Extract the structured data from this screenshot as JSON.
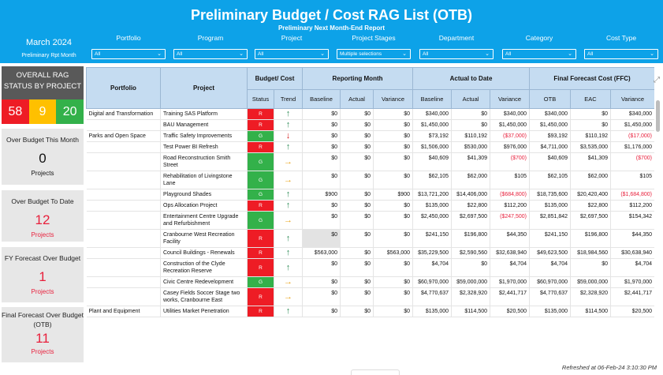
{
  "header": {
    "title": "Preliminary Budget / Cost RAG List (OTB)",
    "subtitle": "Preliminary Next Month-End Report",
    "period": "March 2024",
    "period_label": "Preliminary Rpt Month"
  },
  "filters": [
    {
      "label": "Portfolio",
      "value": "All"
    },
    {
      "label": "Program",
      "value": "All"
    },
    {
      "label": "Project",
      "value": "All"
    },
    {
      "label": "Project Stages",
      "value": "Multiple selections"
    },
    {
      "label": "Department",
      "value": "All"
    },
    {
      "label": "Category",
      "value": "All"
    },
    {
      "label": "Cost Type",
      "value": "All"
    }
  ],
  "rag": {
    "title": "OVERALL RAG STATUS BY PROJECT",
    "red": "58",
    "amber": "9",
    "green": "20"
  },
  "cards": [
    {
      "title": "Over Budget This Month",
      "value": "0",
      "sub": "Projects"
    },
    {
      "title": "Over Budget To Date",
      "value": "12",
      "sub": "Projects"
    },
    {
      "title": "FY Forecast Over Budget",
      "value": "1",
      "sub": "Projects"
    },
    {
      "title": "Final Forecast Over Budget (OTB)",
      "value": "11",
      "sub": "Projects"
    }
  ],
  "table": {
    "groups": {
      "portfolio": "Portfolio",
      "project": "Project",
      "budget_cost": "Budget/ Cost",
      "reporting_month": "Reporting Month",
      "actual_to_date": "Actual to Date",
      "ffc": "Final Forecast Cost (FFC)"
    },
    "columns": [
      "Status",
      "Trend",
      "Baseline",
      "Actual",
      "Variance",
      "Baseline",
      "Actual",
      "Variance",
      "OTB",
      "EAC",
      "Variance"
    ],
    "rows": [
      {
        "portfolio": "Digital and Transformation",
        "project": "Training SAS Platform",
        "status": "R",
        "trend": "up",
        "rm_base": "$0",
        "rm_act": "$0",
        "rm_var": "$0",
        "atd_base": "$340,000",
        "atd_act": "$0",
        "atd_var": "$340,000",
        "otb": "$340,000",
        "eac": "$0",
        "ffc_var": "$340,000"
      },
      {
        "portfolio": "",
        "project": "BAU Management",
        "status": "R",
        "trend": "up",
        "rm_base": "$0",
        "rm_act": "$0",
        "rm_var": "$0",
        "atd_base": "$1,450,000",
        "atd_act": "$0",
        "atd_var": "$1,450,000",
        "otb": "$1,450,000",
        "eac": "$0",
        "ffc_var": "$1,450,000"
      },
      {
        "portfolio": "Parks and Open Space",
        "project": "Traffic Safety Improvements",
        "status": "G",
        "trend": "down",
        "rm_base": "$0",
        "rm_act": "$0",
        "rm_var": "$0",
        "atd_base": "$73,192",
        "atd_act": "$110,192",
        "atd_var": "($37,000)",
        "otb": "$93,192",
        "eac": "$110,192",
        "ffc_var": "($17,000)"
      },
      {
        "portfolio": "",
        "project": "Test Power BI Refresh",
        "status": "R",
        "trend": "up",
        "rm_base": "$0",
        "rm_act": "$0",
        "rm_var": "$0",
        "atd_base": "$1,506,000",
        "atd_act": "$530,000",
        "atd_var": "$976,000",
        "otb": "$4,711,000",
        "eac": "$3,535,000",
        "ffc_var": "$1,176,000"
      },
      {
        "portfolio": "",
        "project": "Road Reconstruction Smith Street",
        "status": "G",
        "trend": "right",
        "rm_base": "$0",
        "rm_act": "$0",
        "rm_var": "$0",
        "atd_base": "$40,609",
        "atd_act": "$41,309",
        "atd_var": "($700)",
        "otb": "$40,609",
        "eac": "$41,309",
        "ffc_var": "($700)"
      },
      {
        "portfolio": "",
        "project": "Rehabilitation of Livingstone Lane",
        "status": "G",
        "trend": "right",
        "rm_base": "$0",
        "rm_act": "$0",
        "rm_var": "$0",
        "atd_base": "$62,105",
        "atd_act": "$62,000",
        "atd_var": "$105",
        "otb": "$62,105",
        "eac": "$62,000",
        "ffc_var": "$105"
      },
      {
        "portfolio": "",
        "project": "Playground Shades",
        "status": "G",
        "trend": "up",
        "rm_base": "$900",
        "rm_act": "$0",
        "rm_var": "$900",
        "atd_base": "$13,721,200",
        "atd_act": "$14,406,000",
        "atd_var": "($684,800)",
        "otb": "$18,735,600",
        "eac": "$20,420,400",
        "ffc_var": "($1,684,800)"
      },
      {
        "portfolio": "",
        "project": "Ops Allocation Project",
        "status": "R",
        "trend": "up",
        "rm_base": "$0",
        "rm_act": "$0",
        "rm_var": "$0",
        "atd_base": "$135,000",
        "atd_act": "$22,800",
        "atd_var": "$112,200",
        "otb": "$135,000",
        "eac": "$22,800",
        "ffc_var": "$112,200"
      },
      {
        "portfolio": "",
        "project": "Entertainment Centre Upgrade and Refurbishment",
        "status": "G",
        "trend": "right",
        "rm_base": "$0",
        "rm_act": "$0",
        "rm_var": "$0",
        "atd_base": "$2,450,000",
        "atd_act": "$2,697,500",
        "atd_var": "($247,500)",
        "otb": "$2,851,842",
        "eac": "$2,697,500",
        "ffc_var": "$154,342"
      },
      {
        "portfolio": "",
        "project": "Cranbourne West Recreation Facility",
        "status": "R",
        "trend": "up",
        "rm_base": "$0",
        "rm_act": "$0",
        "rm_var": "$0",
        "atd_base": "$241,150",
        "atd_act": "$196,800",
        "atd_var": "$44,350",
        "otb": "$241,150",
        "eac": "$196,800",
        "ffc_var": "$44,350"
      },
      {
        "portfolio": "",
        "project": "Council Buildings - Renewals",
        "status": "R",
        "trend": "up",
        "rm_base": "$563,000",
        "rm_act": "$0",
        "rm_var": "$563,000",
        "atd_base": "$35,229,500",
        "atd_act": "$2,590,560",
        "atd_var": "$32,638,940",
        "otb": "$49,623,500",
        "eac": "$18,984,560",
        "ffc_var": "$30,638,940"
      },
      {
        "portfolio": "",
        "project": "Construction of the Clyde Recreation Reserve",
        "status": "R",
        "trend": "up",
        "rm_base": "$0",
        "rm_act": "$0",
        "rm_var": "$0",
        "atd_base": "$4,704",
        "atd_act": "$0",
        "atd_var": "$4,704",
        "otb": "$4,704",
        "eac": "$0",
        "ffc_var": "$4,704"
      },
      {
        "portfolio": "",
        "project": "Civic Centre Redevelopment",
        "status": "G",
        "trend": "right",
        "rm_base": "$0",
        "rm_act": "$0",
        "rm_var": "$0",
        "atd_base": "$60,970,000",
        "atd_act": "$59,000,000",
        "atd_var": "$1,970,000",
        "otb": "$60,970,000",
        "eac": "$59,000,000",
        "ffc_var": "$1,970,000"
      },
      {
        "portfolio": "",
        "project": "Casey Fields Soccer Stage two works, Cranbourne East",
        "status": "R",
        "trend": "right",
        "rm_base": "$0",
        "rm_act": "$0",
        "rm_var": "$0",
        "atd_base": "$4,770,637",
        "atd_act": "$2,328,920",
        "atd_var": "$2,441,717",
        "otb": "$4,770,637",
        "eac": "$2,328,920",
        "ffc_var": "$2,441,717"
      },
      {
        "portfolio": "Plant and Equipment",
        "project": "Utilities Market Penetration",
        "status": "R",
        "trend": "up",
        "rm_base": "$0",
        "rm_act": "$0",
        "rm_var": "$0",
        "atd_base": "$135,000",
        "atd_act": "$114,500",
        "atd_var": "$20,500",
        "otb": "$135,000",
        "eac": "$114,500",
        "ffc_var": "$20,500"
      }
    ]
  },
  "footer": {
    "refreshed": "Refreshed at  06-Feb-24 3:10:30 PM"
  },
  "colors": {
    "header_bg": "#0da2e8",
    "red": "#ee1c25",
    "amber": "#ffc000",
    "green": "#33b14a",
    "table_header": "#c5dcf1"
  }
}
